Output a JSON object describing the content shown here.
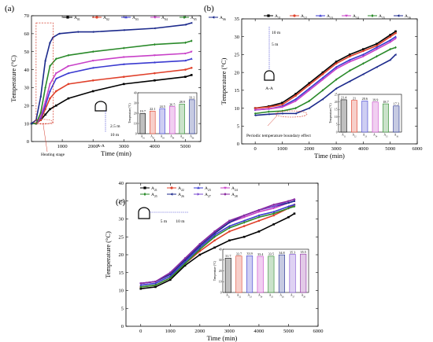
{
  "chart_data": [
    {
      "panel_label": "(a)",
      "type": "line",
      "xlabel": "Time (min)",
      "ylabel": "Temperature (°C)",
      "xlim": [
        0,
        5500
      ],
      "ylim": [
        0,
        70
      ],
      "xticks": [
        1000,
        2000,
        3000,
        4000,
        5000
      ],
      "yticks": [
        0,
        10,
        20,
        30,
        40,
        50,
        60,
        70
      ],
      "grid": false,
      "legend_position": "top",
      "annotations": [
        "Heating stage",
        "A-A",
        "2.5 m",
        "10 m"
      ],
      "series": [
        {
          "name": "A01",
          "color": "#000000",
          "marker": "square",
          "x": [
            0,
            150,
            300,
            450,
            600,
            800,
            1200,
            2000,
            3000,
            4000,
            5000,
            5200
          ],
          "y": [
            10,
            10,
            12,
            15,
            18,
            20,
            24,
            28,
            32,
            34,
            36,
            37
          ]
        },
        {
          "name": "A02",
          "color": "#e0402a",
          "marker": "circle",
          "x": [
            0,
            150,
            300,
            450,
            600,
            800,
            1200,
            2000,
            3000,
            4000,
            5000,
            5200
          ],
          "y": [
            10,
            10,
            12,
            18,
            24,
            28,
            32,
            34,
            36,
            38,
            40,
            41
          ]
        },
        {
          "name": "A03",
          "color": "#3a3ad0",
          "marker": "triangle",
          "x": [
            0,
            150,
            300,
            450,
            600,
            800,
            1200,
            2000,
            3000,
            4000,
            5000,
            5200
          ],
          "y": [
            10,
            10,
            13,
            20,
            28,
            35,
            38,
            41,
            43,
            44,
            45,
            46
          ]
        },
        {
          "name": "A04",
          "color": "#c840c8",
          "marker": "down-triangle",
          "x": [
            0,
            150,
            300,
            450,
            600,
            800,
            1200,
            2000,
            3000,
            4000,
            5000,
            5200
          ],
          "y": [
            10,
            10,
            14,
            22,
            32,
            38,
            42,
            45,
            47,
            48,
            49,
            50
          ]
        },
        {
          "name": "A05",
          "color": "#2a8a2a",
          "marker": "diamond",
          "x": [
            0,
            150,
            300,
            450,
            600,
            800,
            1200,
            2000,
            3000,
            4000,
            5000,
            5200
          ],
          "y": [
            10,
            10,
            16,
            30,
            42,
            46,
            48,
            50,
            52,
            54,
            55,
            56
          ]
        },
        {
          "name": "A06",
          "color": "#1c2a8c",
          "marker": "left-triangle",
          "x": [
            0,
            150,
            300,
            450,
            600,
            700,
            900,
            1500,
            2000,
            3000,
            4000,
            5000,
            5200
          ],
          "y": [
            10,
            12,
            25,
            45,
            55,
            58,
            60,
            61,
            61,
            62,
            63,
            65,
            66
          ]
        }
      ],
      "inset": {
        "type": "bar",
        "ylabel": "Temperature (°C)",
        "ylim": [
          0,
          40
        ],
        "yticks": [
          0,
          10,
          20,
          30,
          40
        ],
        "categories": [
          "A01",
          "A02",
          "A03",
          "A04",
          "A05",
          "A06"
        ],
        "values": [
          19.7,
          22.1,
          24.5,
          26.5,
          28.9,
          33.2
        ],
        "labels": [
          "19.7",
          "22.1",
          "24.5",
          "26.5",
          "28.9",
          "33.2"
        ],
        "colors": [
          "#000000",
          "#e0402a",
          "#3a3ad0",
          "#c840c8",
          "#2a8a2a",
          "#1c2a8c"
        ]
      }
    },
    {
      "panel_label": "(b)",
      "type": "line",
      "xlabel": "Time (min)",
      "ylabel": "Temperature (°C)",
      "xlim": [
        -500,
        6000
      ],
      "ylim": [
        0,
        35
      ],
      "xticks": [
        0,
        1000,
        2000,
        3000,
        4000,
        5000,
        6000
      ],
      "yticks": [
        0,
        5,
        10,
        15,
        20,
        25,
        30,
        35
      ],
      "grid": false,
      "legend_position": "top",
      "annotations": [
        "Periodic temperature boundary effect",
        "A-A",
        "10 m",
        "5 m"
      ],
      "series": [
        {
          "name": "A11",
          "color": "#000000",
          "marker": "square",
          "x": [
            0,
            500,
            1000,
            1500,
            2000,
            2500,
            3000,
            3500,
            4000,
            4500,
            5000,
            5200
          ],
          "y": [
            10,
            10.5,
            11.5,
            14,
            17,
            20,
            23,
            25,
            26.5,
            28,
            30.5,
            31.5
          ]
        },
        {
          "name": "A12",
          "color": "#e0402a",
          "marker": "circle",
          "x": [
            0,
            500,
            1000,
            1500,
            2000,
            2500,
            3000,
            3500,
            4000,
            4500,
            5000,
            5200
          ],
          "y": [
            10,
            10.3,
            11,
            13.5,
            16.5,
            19.5,
            22.5,
            24.5,
            26,
            27.5,
            30,
            31
          ]
        },
        {
          "name": "A13",
          "color": "#3a3ad0",
          "marker": "triangle",
          "x": [
            0,
            500,
            1000,
            1500,
            2000,
            2500,
            3000,
            3500,
            4000,
            4500,
            5000,
            5200
          ],
          "y": [
            9.5,
            9.8,
            10.5,
            12.5,
            15.5,
            18.5,
            21.5,
            23.5,
            25,
            27,
            29,
            30
          ]
        },
        {
          "name": "A14",
          "color": "#c840c8",
          "marker": "down-triangle",
          "x": [
            0,
            500,
            1000,
            1500,
            2000,
            2500,
            3000,
            3500,
            4000,
            4500,
            5000,
            5200
          ],
          "y": [
            9.5,
            9.8,
            10.3,
            12,
            15,
            18,
            21,
            23,
            24.5,
            26.5,
            28.5,
            29.5
          ]
        },
        {
          "name": "A15",
          "color": "#2a8a2a",
          "marker": "diamond",
          "x": [
            0,
            500,
            1000,
            1500,
            2000,
            2500,
            3000,
            3500,
            4000,
            4500,
            5000,
            5200
          ],
          "y": [
            8.5,
            9,
            9.2,
            10,
            12,
            15,
            18,
            20.5,
            22.5,
            24.5,
            26.5,
            27
          ]
        },
        {
          "name": "A16",
          "color": "#1c2a8c",
          "marker": "left-triangle",
          "x": [
            0,
            500,
            1000,
            1500,
            2000,
            2500,
            3000,
            3500,
            4000,
            4500,
            5000,
            5200
          ],
          "y": [
            8,
            8.3,
            8.5,
            8.5,
            10,
            12.5,
            15.5,
            17.5,
            19.5,
            21.5,
            23.5,
            25
          ]
        }
      ],
      "inset": {
        "type": "bar",
        "ylabel": "Temperature (°C)",
        "ylim": [
          0,
          25
        ],
        "yticks": [
          0,
          5,
          10,
          15,
          20,
          25
        ],
        "categories": [
          "A11",
          "A12",
          "A13",
          "A14",
          "A15",
          "A16"
        ],
        "values": [
          21.4,
          21,
          20.6,
          19.9,
          18.7,
          17.3
        ],
        "labels": [
          "21.4",
          "21",
          "20.6",
          "19.9",
          "18.7",
          "17.3"
        ],
        "colors": [
          "#000000",
          "#e0402a",
          "#3a3ad0",
          "#c840c8",
          "#2a8a2a",
          "#1c2a8c"
        ]
      }
    },
    {
      "panel_label": "(c)",
      "type": "line",
      "xlabel": "Time (min)",
      "ylabel": "Temperature (°C)",
      "xlim": [
        -500,
        6000
      ],
      "ylim": [
        0,
        40
      ],
      "xticks": [
        0,
        1000,
        2000,
        3000,
        4000,
        5000,
        6000
      ],
      "yticks": [
        0,
        5,
        10,
        15,
        20,
        25,
        30,
        35,
        40
      ],
      "grid": false,
      "legend_position": "top",
      "annotations": [
        "5 m",
        "10 m"
      ],
      "series": [
        {
          "name": "A21",
          "color": "#000000",
          "marker": "square",
          "x": [
            0,
            500,
            1000,
            1500,
            2000,
            2500,
            3000,
            3500,
            4000,
            4500,
            5000,
            5200
          ],
          "y": [
            10.5,
            11,
            13,
            17,
            20,
            22,
            24,
            25,
            26.5,
            28.5,
            30.5,
            31.5
          ]
        },
        {
          "name": "A22",
          "color": "#e0402a",
          "marker": "circle",
          "x": [
            0,
            500,
            1000,
            1500,
            2000,
            2500,
            3000,
            3500,
            4000,
            4500,
            5000,
            5200
          ],
          "y": [
            11,
            11.5,
            13.5,
            17.5,
            21,
            24,
            26.5,
            28,
            29.5,
            31,
            33,
            34
          ]
        },
        {
          "name": "A23",
          "color": "#3a3ad0",
          "marker": "triangle",
          "x": [
            0,
            500,
            1000,
            1500,
            2000,
            2500,
            3000,
            3500,
            4000,
            4500,
            5000,
            5200
          ],
          "y": [
            11.5,
            12,
            14,
            18,
            22,
            25.5,
            28,
            29.5,
            31,
            32,
            33.5,
            34
          ]
        },
        {
          "name": "A24",
          "color": "#c840c8",
          "marker": "down-triangle",
          "x": [
            0,
            500,
            1000,
            1500,
            2000,
            2500,
            3000,
            3500,
            4000,
            4500,
            5000,
            5200
          ],
          "y": [
            12,
            12.5,
            14.5,
            18.5,
            22.5,
            26,
            29,
            30.5,
            32,
            33,
            34.5,
            35
          ]
        },
        {
          "name": "A25",
          "color": "#2a8a2a",
          "marker": "diamond",
          "x": [
            0,
            500,
            1000,
            1500,
            2000,
            2500,
            3000,
            3500,
            4000,
            4500,
            5000,
            5200
          ],
          "y": [
            11,
            11.5,
            13.5,
            17.5,
            21.5,
            25,
            27.5,
            29,
            30.5,
            31.5,
            33,
            33.5
          ]
        },
        {
          "name": "A26",
          "color": "#1c2a8c",
          "marker": "left-triangle",
          "x": [
            0,
            500,
            1000,
            1500,
            2000,
            2500,
            3000,
            3500,
            4000,
            4500,
            5000,
            5200
          ],
          "y": [
            12,
            12.5,
            14.5,
            18.5,
            22.5,
            26,
            29,
            31,
            32.5,
            33.5,
            34.5,
            35
          ]
        },
        {
          "name": "A27",
          "color": "#7a4ad0",
          "marker": "right-triangle",
          "x": [
            0,
            500,
            1000,
            1500,
            2000,
            2500,
            3000,
            3500,
            4000,
            4500,
            5000,
            5200
          ],
          "y": [
            12,
            12.5,
            15,
            19,
            23,
            26.5,
            29.5,
            31,
            32.5,
            33.5,
            35,
            35.5
          ]
        },
        {
          "name": "A28",
          "color": "#8a2aa0",
          "marker": "hexagon",
          "x": [
            0,
            500,
            1000,
            1500,
            2000,
            2500,
            3000,
            3500,
            4000,
            4500,
            5000,
            5200
          ],
          "y": [
            12,
            12.5,
            15,
            19,
            23,
            26.5,
            29.5,
            31,
            32.5,
            34,
            35,
            35.5
          ]
        }
      ],
      "inset": {
        "type": "bar",
        "ylabel": "Temperature (°C)",
        "ylim": [
          0,
          40
        ],
        "yticks": [
          0,
          10,
          20,
          30,
          40
        ],
        "categories": [
          "A21",
          "A22",
          "A23",
          "A24",
          "A25",
          "A26",
          "A27",
          "A28"
        ],
        "values": [
          31.7,
          33.7,
          33.9,
          33.4,
          33.5,
          34.8,
          35.3,
          35.5
        ],
        "labels": [
          "31.7",
          "33.7",
          "33.9",
          "33.4",
          "33.5",
          "34.8",
          "35.3",
          "35.5"
        ],
        "colors": [
          "#000000",
          "#e0402a",
          "#3a3ad0",
          "#c840c8",
          "#2a8a2a",
          "#1c2a8c",
          "#7a4ad0",
          "#8a2aa0"
        ]
      }
    }
  ]
}
